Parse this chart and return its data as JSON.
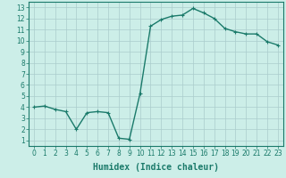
{
  "x": [
    0,
    1,
    2,
    3,
    4,
    5,
    6,
    7,
    8,
    9,
    10,
    11,
    12,
    13,
    14,
    15,
    16,
    17,
    18,
    19,
    20,
    21,
    22,
    23
  ],
  "y": [
    4.0,
    4.1,
    3.8,
    3.6,
    2.0,
    3.5,
    3.6,
    3.5,
    1.2,
    1.1,
    5.2,
    11.3,
    11.9,
    12.2,
    12.3,
    12.9,
    12.5,
    12.0,
    11.1,
    10.8,
    10.6,
    10.6,
    9.9,
    9.6
  ],
  "line_color": "#1a7a6a",
  "marker": "+",
  "marker_size": 3,
  "bg_color": "#cceee8",
  "grid_color": "#aacccc",
  "xlabel": "Humidex (Indice chaleur)",
  "xlim": [
    -0.5,
    23.5
  ],
  "ylim": [
    0.5,
    13.5
  ],
  "yticks": [
    1,
    2,
    3,
    4,
    5,
    6,
    7,
    8,
    9,
    10,
    11,
    12,
    13
  ],
  "xticks": [
    0,
    1,
    2,
    3,
    4,
    5,
    6,
    7,
    8,
    9,
    10,
    11,
    12,
    13,
    14,
    15,
    16,
    17,
    18,
    19,
    20,
    21,
    22,
    23
  ],
  "xlabel_fontsize": 7,
  "tick_fontsize": 5.5,
  "line_width": 1.0
}
